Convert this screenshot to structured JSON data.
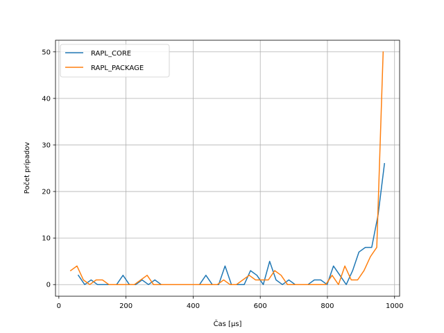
{
  "chart_data": {
    "type": "line",
    "xlabel": "Čas [µs]",
    "ylabel": "Počet prípadov",
    "xlim": [
      -10,
      1015
    ],
    "ylim": [
      -2.5,
      52.5
    ],
    "xticks": [
      0,
      200,
      400,
      600,
      800,
      1000
    ],
    "yticks": [
      0,
      10,
      20,
      30,
      40,
      50
    ],
    "grid": true,
    "legend_position": "top-left",
    "series": [
      {
        "name": "RAPL_CORE",
        "color": "#1f77b4",
        "x": [
          58,
          77,
          96,
          115,
          134,
          153,
          172,
          191,
          210,
          229,
          248,
          267,
          286,
          305,
          324,
          343,
          362,
          381,
          400,
          419,
          438,
          457,
          476,
          495,
          514,
          533,
          552,
          571,
          590,
          609,
          628,
          647,
          666,
          685,
          704,
          723,
          742,
          761,
          780,
          799,
          818,
          837,
          856,
          875,
          894,
          913,
          932,
          951,
          970
        ],
        "y": [
          2,
          0,
          1,
          0,
          0,
          0,
          0,
          2,
          0,
          0,
          1,
          0,
          1,
          0,
          0,
          0,
          0,
          0,
          0,
          0,
          2,
          0,
          0,
          4,
          0,
          0,
          0,
          3,
          2,
          0,
          5,
          1,
          0,
          1,
          0,
          0,
          0,
          1,
          1,
          0,
          4,
          2,
          0,
          3,
          7,
          8,
          8,
          15,
          26
        ]
      },
      {
        "name": "RAPL_PACKAGE",
        "color": "#ff7f0e",
        "x": [
          35,
          54,
          73,
          92,
          111,
          130,
          149,
          168,
          187,
          206,
          225,
          244,
          263,
          282,
          301,
          320,
          339,
          358,
          377,
          396,
          415,
          434,
          453,
          472,
          491,
          510,
          529,
          548,
          567,
          586,
          605,
          624,
          643,
          662,
          681,
          700,
          719,
          738,
          757,
          776,
          795,
          814,
          833,
          852,
          871,
          890,
          909,
          928,
          947,
          966
        ],
        "y": [
          3,
          4,
          1,
          0,
          1,
          1,
          0,
          0,
          0,
          0,
          0,
          1,
          2,
          0,
          0,
          0,
          0,
          0,
          0,
          0,
          0,
          0,
          0,
          0,
          1,
          0,
          0,
          1,
          2,
          1,
          1,
          1,
          3,
          2,
          0,
          0,
          0,
          0,
          0,
          0,
          0,
          2,
          0,
          4,
          1,
          1,
          3,
          6,
          8,
          50
        ]
      }
    ]
  }
}
